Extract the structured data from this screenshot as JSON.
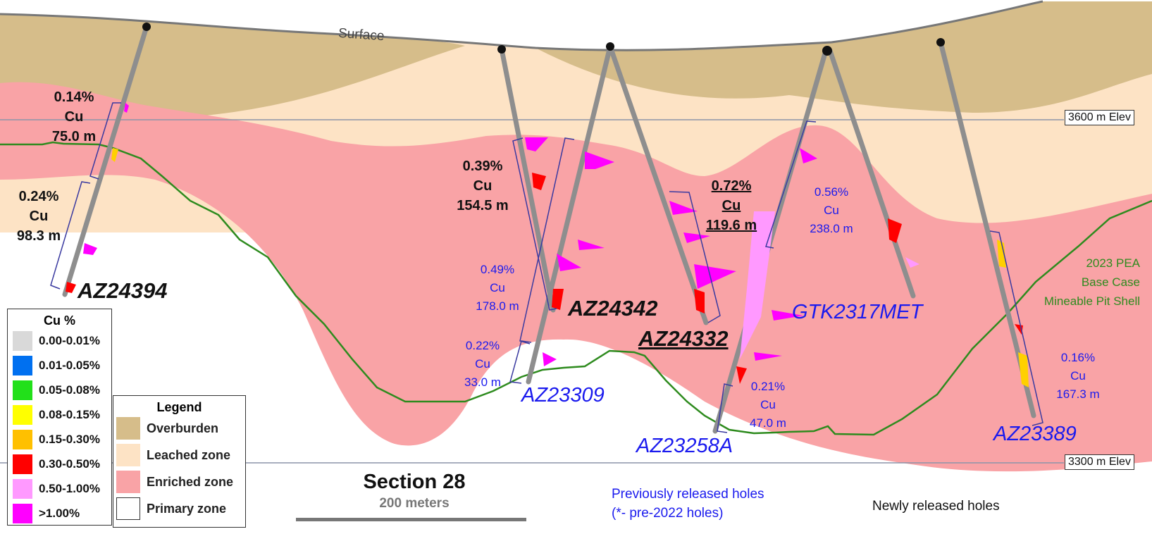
{
  "surface_label": "Surface",
  "elevations": {
    "upper": "3600 m Elev",
    "lower": "3300 m Elev"
  },
  "pit_shell": {
    "lines": [
      "2023 PEA",
      "Base Case",
      "Mineable Pit Shell"
    ],
    "color": "#2e8b1e"
  },
  "section": {
    "title": "Section 28",
    "scale": "200 meters"
  },
  "notes": {
    "previous": [
      "Previously released holes",
      "(*- pre-2022 holes)"
    ],
    "new": "Newly released holes"
  },
  "cu_legend": {
    "title": "Cu %",
    "items": [
      {
        "label": "0.00-0.01%",
        "color": "#d9d9d9"
      },
      {
        "label": "0.01-0.05%",
        "color": "#0070f0"
      },
      {
        "label": "0.05-0.08%",
        "color": "#22e01a"
      },
      {
        "label": "0.08-0.15%",
        "color": "#ffff00"
      },
      {
        "label": "0.15-0.30%",
        "color": "#ffc000"
      },
      {
        "label": "0.30-0.50%",
        "color": "#ff0000"
      },
      {
        "label": "0.50-1.00%",
        "color": "#ff99ff"
      },
      {
        "label": ">1.00%",
        "color": "#ff00ff"
      }
    ]
  },
  "zone_legend": {
    "title": "Legend",
    "items": [
      {
        "label": "Overburden",
        "color": "#d6bd8a"
      },
      {
        "label": "Leached zone",
        "color": "#fde3c5"
      },
      {
        "label": "Enriched zone",
        "color": "#f9a3a6"
      },
      {
        "label": "Primary zone",
        "color": "#ffffff"
      }
    ]
  },
  "holes": {
    "az24394": "AZ24394",
    "az24342": "AZ24342",
    "az24332": "AZ24332",
    "az23309": "AZ23309",
    "gtk2317met": "GTK2317MET",
    "az23258a": "AZ23258A",
    "az23389": "AZ23389"
  },
  "intercepts": {
    "i1": "0.14%\nCu\n75.0 m",
    "i2": "0.24%\nCu\n98.3 m",
    "i3": "0.39%\nCu\n154.5 m",
    "i4": "0.49%\nCu\n178.0 m",
    "i5": "0.22%\nCu\n33.0 m",
    "i6": "0.72%\nCu\n119.6 m",
    "i7": "0.56%\nCu\n238.0 m",
    "i8": "0.21%\nCu\n47.0 m",
    "i9": "0.16%\nCu\n167.3 m"
  },
  "colors": {
    "overburden": "#d6bd8a",
    "leached": "#fde3c5",
    "enriched": "#f9a3a6",
    "new_hole_label": "#111111",
    "previous_hole_label": "#1a1aee"
  }
}
